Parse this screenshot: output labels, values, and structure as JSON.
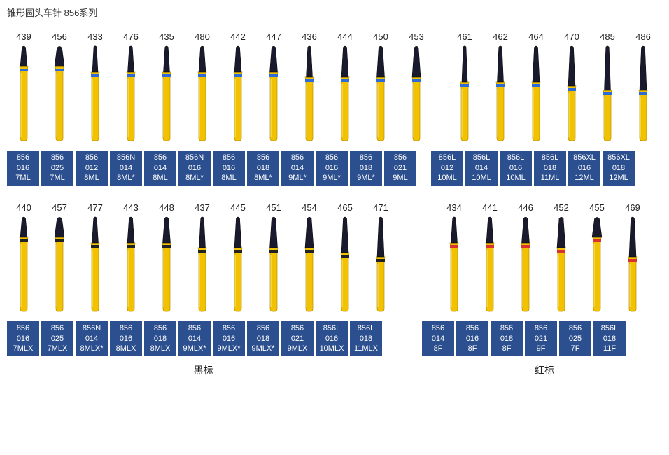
{
  "title": "锥形圆头车针 856系列",
  "colors": {
    "label_bg": "#2c4f8f",
    "label_text": "#ffffff",
    "shank_fill": "#f2c200",
    "shank_stroke": "#b89000",
    "tip_fill": "#1a1a2e",
    "band_blue": "#2f6bd6",
    "band_black": "#222222",
    "band_red": "#d93030",
    "outline": "#777"
  },
  "row1": {
    "band": "blue",
    "groupA": [
      {
        "num": "439",
        "code": [
          "856",
          "016",
          "7ML"
        ],
        "tipH": 30,
        "tipW": 10
      },
      {
        "num": "456",
        "code": [
          "856",
          "025",
          "7ML"
        ],
        "tipH": 30,
        "tipW": 14
      },
      {
        "num": "433",
        "code": [
          "856",
          "012",
          "8ML"
        ],
        "tipH": 38,
        "tipW": 8
      },
      {
        "num": "476",
        "code": [
          "856N",
          "014",
          "8ML*"
        ],
        "tipH": 38,
        "tipW": 9
      },
      {
        "num": "435",
        "code": [
          "856",
          "014",
          "8ML"
        ],
        "tipH": 38,
        "tipW": 9
      },
      {
        "num": "480",
        "code": [
          "856N",
          "016",
          "8ML*"
        ],
        "tipH": 38,
        "tipW": 10
      },
      {
        "num": "442",
        "code": [
          "856",
          "016",
          "8ML"
        ],
        "tipH": 38,
        "tipW": 10
      },
      {
        "num": "447",
        "code": [
          "856",
          "018",
          "8ML*"
        ],
        "tipH": 38,
        "tipW": 11
      },
      {
        "num": "436",
        "code": [
          "856",
          "014",
          "9ML*"
        ],
        "tipH": 45,
        "tipW": 9
      },
      {
        "num": "444",
        "code": [
          "856",
          "016",
          "9ML*"
        ],
        "tipH": 45,
        "tipW": 10
      },
      {
        "num": "450",
        "code": [
          "856",
          "018",
          "9ML*"
        ],
        "tipH": 45,
        "tipW": 11
      },
      {
        "num": "453",
        "code": [
          "856",
          "021",
          "9ML"
        ],
        "tipH": 45,
        "tipW": 12
      }
    ],
    "groupB": [
      {
        "num": "461",
        "code": [
          "856L",
          "012",
          "10ML"
        ],
        "tipH": 52,
        "tipW": 8
      },
      {
        "num": "462",
        "code": [
          "856L",
          "014",
          "10ML"
        ],
        "tipH": 52,
        "tipW": 9
      },
      {
        "num": "464",
        "code": [
          "856L",
          "016",
          "10ML"
        ],
        "tipH": 52,
        "tipW": 10
      },
      {
        "num": "470",
        "code": [
          "856L",
          "018",
          "11ML"
        ],
        "tipH": 58,
        "tipW": 10
      },
      {
        "num": "485",
        "code": [
          "856XL",
          "016",
          "12ML"
        ],
        "tipH": 64,
        "tipW": 9
      },
      {
        "num": "486",
        "code": [
          "856XL",
          "018",
          "12ML"
        ],
        "tipH": 64,
        "tipW": 10
      }
    ]
  },
  "row2A": {
    "band": "black",
    "label": "黑标",
    "items": [
      {
        "num": "440",
        "code": [
          "856",
          "016",
          "7MLX"
        ],
        "tipH": 30,
        "tipW": 10
      },
      {
        "num": "457",
        "code": [
          "856",
          "025",
          "7MLX"
        ],
        "tipH": 30,
        "tipW": 14
      },
      {
        "num": "477",
        "code": [
          "856N",
          "014",
          "8MLX*"
        ],
        "tipH": 38,
        "tipW": 9
      },
      {
        "num": "443",
        "code": [
          "856",
          "016",
          "8MLX"
        ],
        "tipH": 38,
        "tipW": 10
      },
      {
        "num": "448",
        "code": [
          "856",
          "018",
          "8MLX"
        ],
        "tipH": 38,
        "tipW": 11
      },
      {
        "num": "437",
        "code": [
          "856",
          "014",
          "9MLX*"
        ],
        "tipH": 45,
        "tipW": 9
      },
      {
        "num": "445",
        "code": [
          "856",
          "016",
          "9MLX*"
        ],
        "tipH": 45,
        "tipW": 10
      },
      {
        "num": "451",
        "code": [
          "856",
          "018",
          "9MLX*"
        ],
        "tipH": 45,
        "tipW": 11
      },
      {
        "num": "454",
        "code": [
          "856",
          "021",
          "9MLX"
        ],
        "tipH": 45,
        "tipW": 12
      },
      {
        "num": "465",
        "code": [
          "856L",
          "016",
          "10MLX"
        ],
        "tipH": 52,
        "tipW": 10
      },
      {
        "num": "471",
        "code": [
          "856L",
          "018",
          "11MLX"
        ],
        "tipH": 58,
        "tipW": 10
      }
    ]
  },
  "row2B": {
    "band": "red",
    "label": "红标",
    "items": [
      {
        "num": "434",
        "code": [
          "856",
          "014",
          "8F"
        ],
        "tipH": 38,
        "tipW": 9
      },
      {
        "num": "441",
        "code": [
          "856",
          "016",
          "8F"
        ],
        "tipH": 38,
        "tipW": 10
      },
      {
        "num": "446",
        "code": [
          "856",
          "018",
          "8F"
        ],
        "tipH": 38,
        "tipW": 11
      },
      {
        "num": "452",
        "code": [
          "856",
          "021",
          "9F"
        ],
        "tipH": 45,
        "tipW": 12
      },
      {
        "num": "455",
        "code": [
          "856",
          "025",
          "7F"
        ],
        "tipH": 30,
        "tipW": 14
      },
      {
        "num": "469",
        "code": [
          "856L",
          "018",
          "11F"
        ],
        "tipH": 58,
        "tipW": 10
      }
    ]
  }
}
